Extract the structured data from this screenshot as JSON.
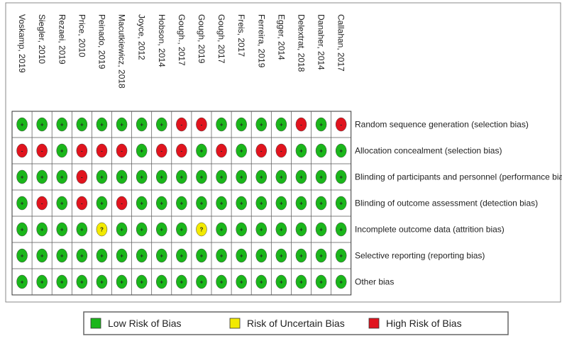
{
  "studies": [
    "Voskamp, 2019",
    "Siegler, 2010",
    "Rezaei, 2019",
    "Price, 2010",
    "Peinado, 2019",
    "Macutkiewicz, 2018",
    "Joyce, 2012",
    "Hobson, 2014",
    "Gough., 2017",
    "Gough, 2019",
    "Gough, 2017",
    "Freis, 2017",
    "Ferreira, 2019",
    "Egger, 2014",
    "Delextrat, 2018",
    "Danaher, 2014",
    "Callahan, 2017"
  ],
  "domains": [
    {
      "label": "Random sequence generation (selection bias)",
      "judgements": [
        "+",
        "+",
        "+",
        "+",
        "+",
        "+",
        "+",
        "+",
        "-",
        "-",
        "+",
        "+",
        "+",
        "+",
        "-",
        "+",
        "-"
      ]
    },
    {
      "label": "Allocation concealment (selection bias)",
      "judgements": [
        "-",
        "-",
        "+",
        "-",
        "-",
        "-",
        "+",
        "-",
        "-",
        "+",
        "-",
        "+",
        "-",
        "-",
        "+",
        "+",
        "+"
      ]
    },
    {
      "label": "Blinding of participants and personnel (performance bias)",
      "judgements": [
        "+",
        "+",
        "+",
        "-",
        "+",
        "+",
        "+",
        "+",
        "+",
        "+",
        "+",
        "+",
        "+",
        "+",
        "+",
        "+",
        "+"
      ]
    },
    {
      "label": "Blinding of outcome assessment (detection bias)",
      "judgements": [
        "+",
        "-",
        "+",
        "-",
        "+",
        "-",
        "+",
        "+",
        "+",
        "+",
        "+",
        "+",
        "+",
        "+",
        "+",
        "+",
        "+"
      ]
    },
    {
      "label": "Incomplete outcome data (attrition bias)",
      "judgements": [
        "+",
        "+",
        "+",
        "+",
        "?",
        "+",
        "+",
        "+",
        "+",
        "?",
        "+",
        "+",
        "+",
        "+",
        "+",
        "+",
        "+"
      ]
    },
    {
      "label": "Selective reporting (reporting bias)",
      "judgements": [
        "+",
        "+",
        "+",
        "+",
        "+",
        "+",
        "+",
        "+",
        "+",
        "+",
        "+",
        "+",
        "+",
        "+",
        "+",
        "+",
        "+"
      ]
    },
    {
      "label": "Other bias",
      "judgements": [
        "+",
        "+",
        "+",
        "+",
        "+",
        "+",
        "+",
        "+",
        "+",
        "+",
        "+",
        "+",
        "+",
        "+",
        "+",
        "+",
        "+"
      ]
    }
  ],
  "legend": [
    {
      "symbol": "+",
      "label": "Low Risk of Bias",
      "color": "#1bb61b"
    },
    {
      "symbol": "?",
      "label": "Risk of Uncertain Bias",
      "color": "#f2ea00"
    },
    {
      "symbol": "-",
      "label": "High Risk of Bias",
      "color": "#e0141e"
    }
  ]
}
